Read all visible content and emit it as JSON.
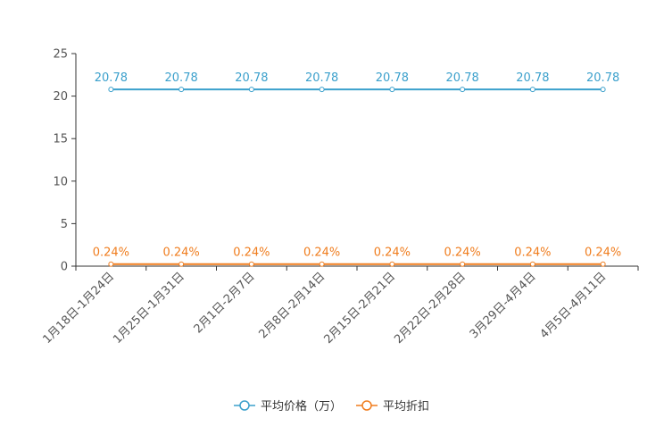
{
  "chart_data": {
    "type": "line",
    "categories": [
      "1月18日-1月24日",
      "1月25日-1月31日",
      "2月1日-2月7日",
      "2月8日-2月14日",
      "2月15日-2月21日",
      "2月22日-2月28日",
      "3月29日-4月4日",
      "4月5日-4月11日"
    ],
    "series": [
      {
        "name": "平均价格（万）",
        "values": [
          20.78,
          20.78,
          20.78,
          20.78,
          20.78,
          20.78,
          20.78,
          20.78
        ],
        "labels": [
          "20.78",
          "20.78",
          "20.78",
          "20.78",
          "20.78",
          "20.78",
          "20.78",
          "20.78"
        ],
        "color": "#3ba0cc"
      },
      {
        "name": "平均折扣",
        "values": [
          0.24,
          0.24,
          0.24,
          0.24,
          0.24,
          0.24,
          0.24,
          0.24
        ],
        "labels": [
          "0.24%",
          "0.24%",
          "0.24%",
          "0.24%",
          "0.24%",
          "0.24%",
          "0.24%",
          "0.24%"
        ],
        "color": "#f07d1e"
      }
    ],
    "ylim": [
      0,
      25
    ],
    "yticks": [
      0,
      5,
      10,
      15,
      20,
      25
    ],
    "legend_position": "bottom-center",
    "grid": false
  }
}
